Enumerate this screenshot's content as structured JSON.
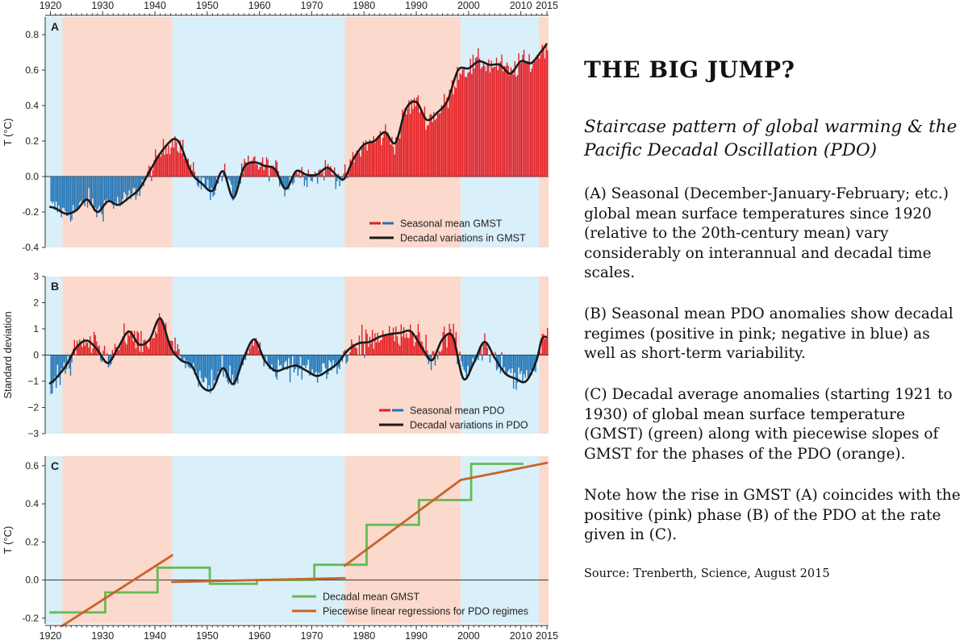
{
  "sidebar": {
    "title": "THE BIG JUMP?",
    "subtitle": "Staircase pattern of global warming & the Pacific Decadal Oscillation (PDO)",
    "paragraphs": [
      "(A) Seasonal (December-January-February; etc.) global mean surface temperatures since 1920 (relative to the 20th-century mean) vary considerably on interannual and decadal time scales.",
      "(B) Seasonal mean PDO anomalies show decadal regimes (positive in pink; negative in blue) as well as short-term variability.",
      "(C) Decadal average anomalies (starting 1921 to 1930) of global mean surface temperature (GMST) (green) along with piecewise slopes of GMST for the phases of the PDO (orange).",
      "Note how the rise in GMST (A) coincides with the positive (pink) phase (B) of the PDO at the rate given in (C)."
    ],
    "source": "Source: Trenberth, Science, August 2015"
  },
  "colors": {
    "pink_regime": "#fbd9cc",
    "blue_regime": "#d9eff9",
    "positive_bar": "#e31e24",
    "negative_bar": "#1f74b8",
    "decadal_line": "#1a1a1a",
    "decadal_mean": "#66bb55",
    "regression": "#c8642a"
  },
  "chart_data": [
    {
      "panel": "A",
      "type": "bar",
      "title": "",
      "xlabel": "",
      "ylabel": "T (°C)",
      "xlim": [
        1919,
        2015.3
      ],
      "ylim": [
        -0.4,
        0.9
      ],
      "x_ticks": [
        "1920",
        "1930",
        "1940",
        "1950",
        "1960",
        "1970",
        "1980",
        "1990",
        "2000",
        "2010",
        "2015"
      ],
      "y_ticks": [
        "-0.4",
        "-0.2",
        "0.0",
        "0.2",
        "0.4",
        "0.6",
        "0.8"
      ],
      "regimes": [
        {
          "start": 1919,
          "end": 1922.3,
          "phase": "negative"
        },
        {
          "start": 1922.3,
          "end": 1943.3,
          "phase": "positive"
        },
        {
          "start": 1943.3,
          "end": 1976.3,
          "phase": "negative"
        },
        {
          "start": 1976.3,
          "end": 1998.5,
          "phase": "positive"
        },
        {
          "start": 1998.5,
          "end": 2013.5,
          "phase": "negative"
        },
        {
          "start": 2013.5,
          "end": 2015.3,
          "phase": "positive"
        }
      ],
      "legend": [
        "Seasonal mean GMST",
        "Decadal variations in GMST"
      ],
      "legend_position": "bottom-right",
      "series": [
        {
          "name": "Seasonal mean GMST",
          "kind": "seasonal-bars",
          "note": "values oscillate around the decadal curve"
        },
        {
          "name": "Decadal variations in GMST",
          "x": [
            1919.8,
            1921,
            1923,
            1925,
            1927,
            1929,
            1931,
            1933,
            1935,
            1937,
            1939,
            1941,
            1943,
            1944,
            1945,
            1947,
            1949,
            1951,
            1953,
            1955,
            1957,
            1959,
            1961,
            1963,
            1965,
            1967,
            1969,
            1971,
            1973,
            1975,
            1976.3,
            1978,
            1980,
            1982,
            1984,
            1986,
            1988,
            1990,
            1992,
            1994,
            1996,
            1998,
            2000,
            2002,
            2004,
            2006,
            2008,
            2010,
            2012,
            2014,
            2015
          ],
          "y": [
            -0.17,
            -0.18,
            -0.21,
            -0.19,
            -0.13,
            -0.2,
            -0.14,
            -0.16,
            -0.12,
            -0.07,
            0.03,
            0.13,
            0.2,
            0.21,
            0.17,
            0.02,
            -0.04,
            -0.08,
            0.03,
            -0.12,
            0.05,
            0.08,
            0.06,
            0.04,
            -0.07,
            0.03,
            0.01,
            0.01,
            0.05,
            0.0,
            -0.01,
            0.1,
            0.18,
            0.2,
            0.25,
            0.19,
            0.38,
            0.42,
            0.32,
            0.36,
            0.43,
            0.6,
            0.61,
            0.65,
            0.63,
            0.63,
            0.58,
            0.65,
            0.64,
            0.71,
            0.75
          ]
        }
      ]
    },
    {
      "panel": "B",
      "type": "bar",
      "title": "",
      "xlabel": "",
      "ylabel": "Standard deviation",
      "xlim": [
        1919,
        2015.3
      ],
      "ylim": [
        -3,
        3
      ],
      "y_ticks": [
        "−3",
        "−2",
        "−1",
        "0",
        "1",
        "2",
        "3"
      ],
      "legend": [
        "Seasonal mean PDO",
        "Decadal variations in PDO"
      ],
      "legend_position": "bottom-right",
      "series": [
        {
          "name": "Seasonal mean PDO",
          "kind": "seasonal-bars",
          "note": "values oscillate around the decadal curve"
        },
        {
          "name": "Decadal variations in PDO",
          "x": [
            1919.8,
            1921,
            1923,
            1925,
            1927,
            1929,
            1931,
            1933,
            1935,
            1937,
            1939,
            1941,
            1943,
            1945,
            1947,
            1949,
            1951,
            1953,
            1955,
            1957,
            1959,
            1961,
            1963,
            1965,
            1967,
            1969,
            1971,
            1973,
            1975,
            1977,
            1979,
            1981,
            1983,
            1985,
            1987,
            1989,
            1991,
            1993,
            1995,
            1997,
            1999,
            2001,
            2003,
            2005,
            2007,
            2009,
            2011,
            2013,
            2014,
            2015
          ],
          "y": [
            -1.1,
            -0.9,
            -0.4,
            0.3,
            0.55,
            0.2,
            -0.3,
            0.3,
            0.9,
            0.4,
            0.6,
            1.4,
            0.3,
            -0.2,
            -0.4,
            -1.2,
            -1.3,
            -0.5,
            -1.1,
            -0.1,
            0.6,
            -0.2,
            -0.6,
            -0.5,
            -0.4,
            -0.6,
            -0.8,
            -0.6,
            -0.3,
            0.2,
            0.45,
            0.5,
            0.7,
            0.8,
            0.85,
            0.9,
            0.3,
            -0.2,
            0.6,
            0.7,
            -0.9,
            -0.3,
            0.5,
            -0.1,
            -0.7,
            -0.9,
            -1.0,
            -0.2,
            0.6,
            0.7
          ]
        }
      ]
    },
    {
      "panel": "C",
      "type": "line",
      "title": "",
      "xlabel": "",
      "ylabel": "T (°C)",
      "xlim": [
        1919,
        2015.3
      ],
      "ylim": [
        -0.23,
        0.65
      ],
      "x_ticks": [
        "1920",
        "1930",
        "1940",
        "1950",
        "1960",
        "1970",
        "1980",
        "1990",
        "2000",
        "2010",
        "2015"
      ],
      "y_ticks": [
        "-0.2",
        "0.0",
        "0.2",
        "0.4",
        "0.6"
      ],
      "legend": [
        "Decadal mean GMST",
        "Piecewise linear regressions for PDO regimes"
      ],
      "legend_position": "bottom-right",
      "series": [
        {
          "name": "Decadal mean GMST",
          "steps": [
            [
              1919.8,
              1930.5,
              -0.17
            ],
            [
              1930.5,
              1940.5,
              -0.065
            ],
            [
              1940.5,
              1950.5,
              0.065
            ],
            [
              1950.5,
              1959.5,
              -0.02
            ],
            [
              1959.5,
              1970.5,
              0.0
            ],
            [
              1970.5,
              1980.5,
              0.08
            ],
            [
              1980.5,
              1990.5,
              0.29
            ],
            [
              1990.5,
              2000.5,
              0.42
            ],
            [
              2000.5,
              2010.5,
              0.61
            ]
          ]
        },
        {
          "name": "Piecewise linear regressions for PDO regimes",
          "segments": [
            [
              [
                1922.3,
                -0.24
              ],
              [
                1943.3,
                0.13
              ]
            ],
            [
              [
                1943.3,
                -0.01
              ],
              [
                1976.3,
                0.01
              ]
            ],
            [
              [
                1976.3,
                0.075
              ],
              [
                1998.5,
                0.525
              ]
            ],
            [
              [
                1998.5,
                0.525
              ],
              [
                2015,
                0.615
              ]
            ]
          ]
        }
      ]
    }
  ]
}
